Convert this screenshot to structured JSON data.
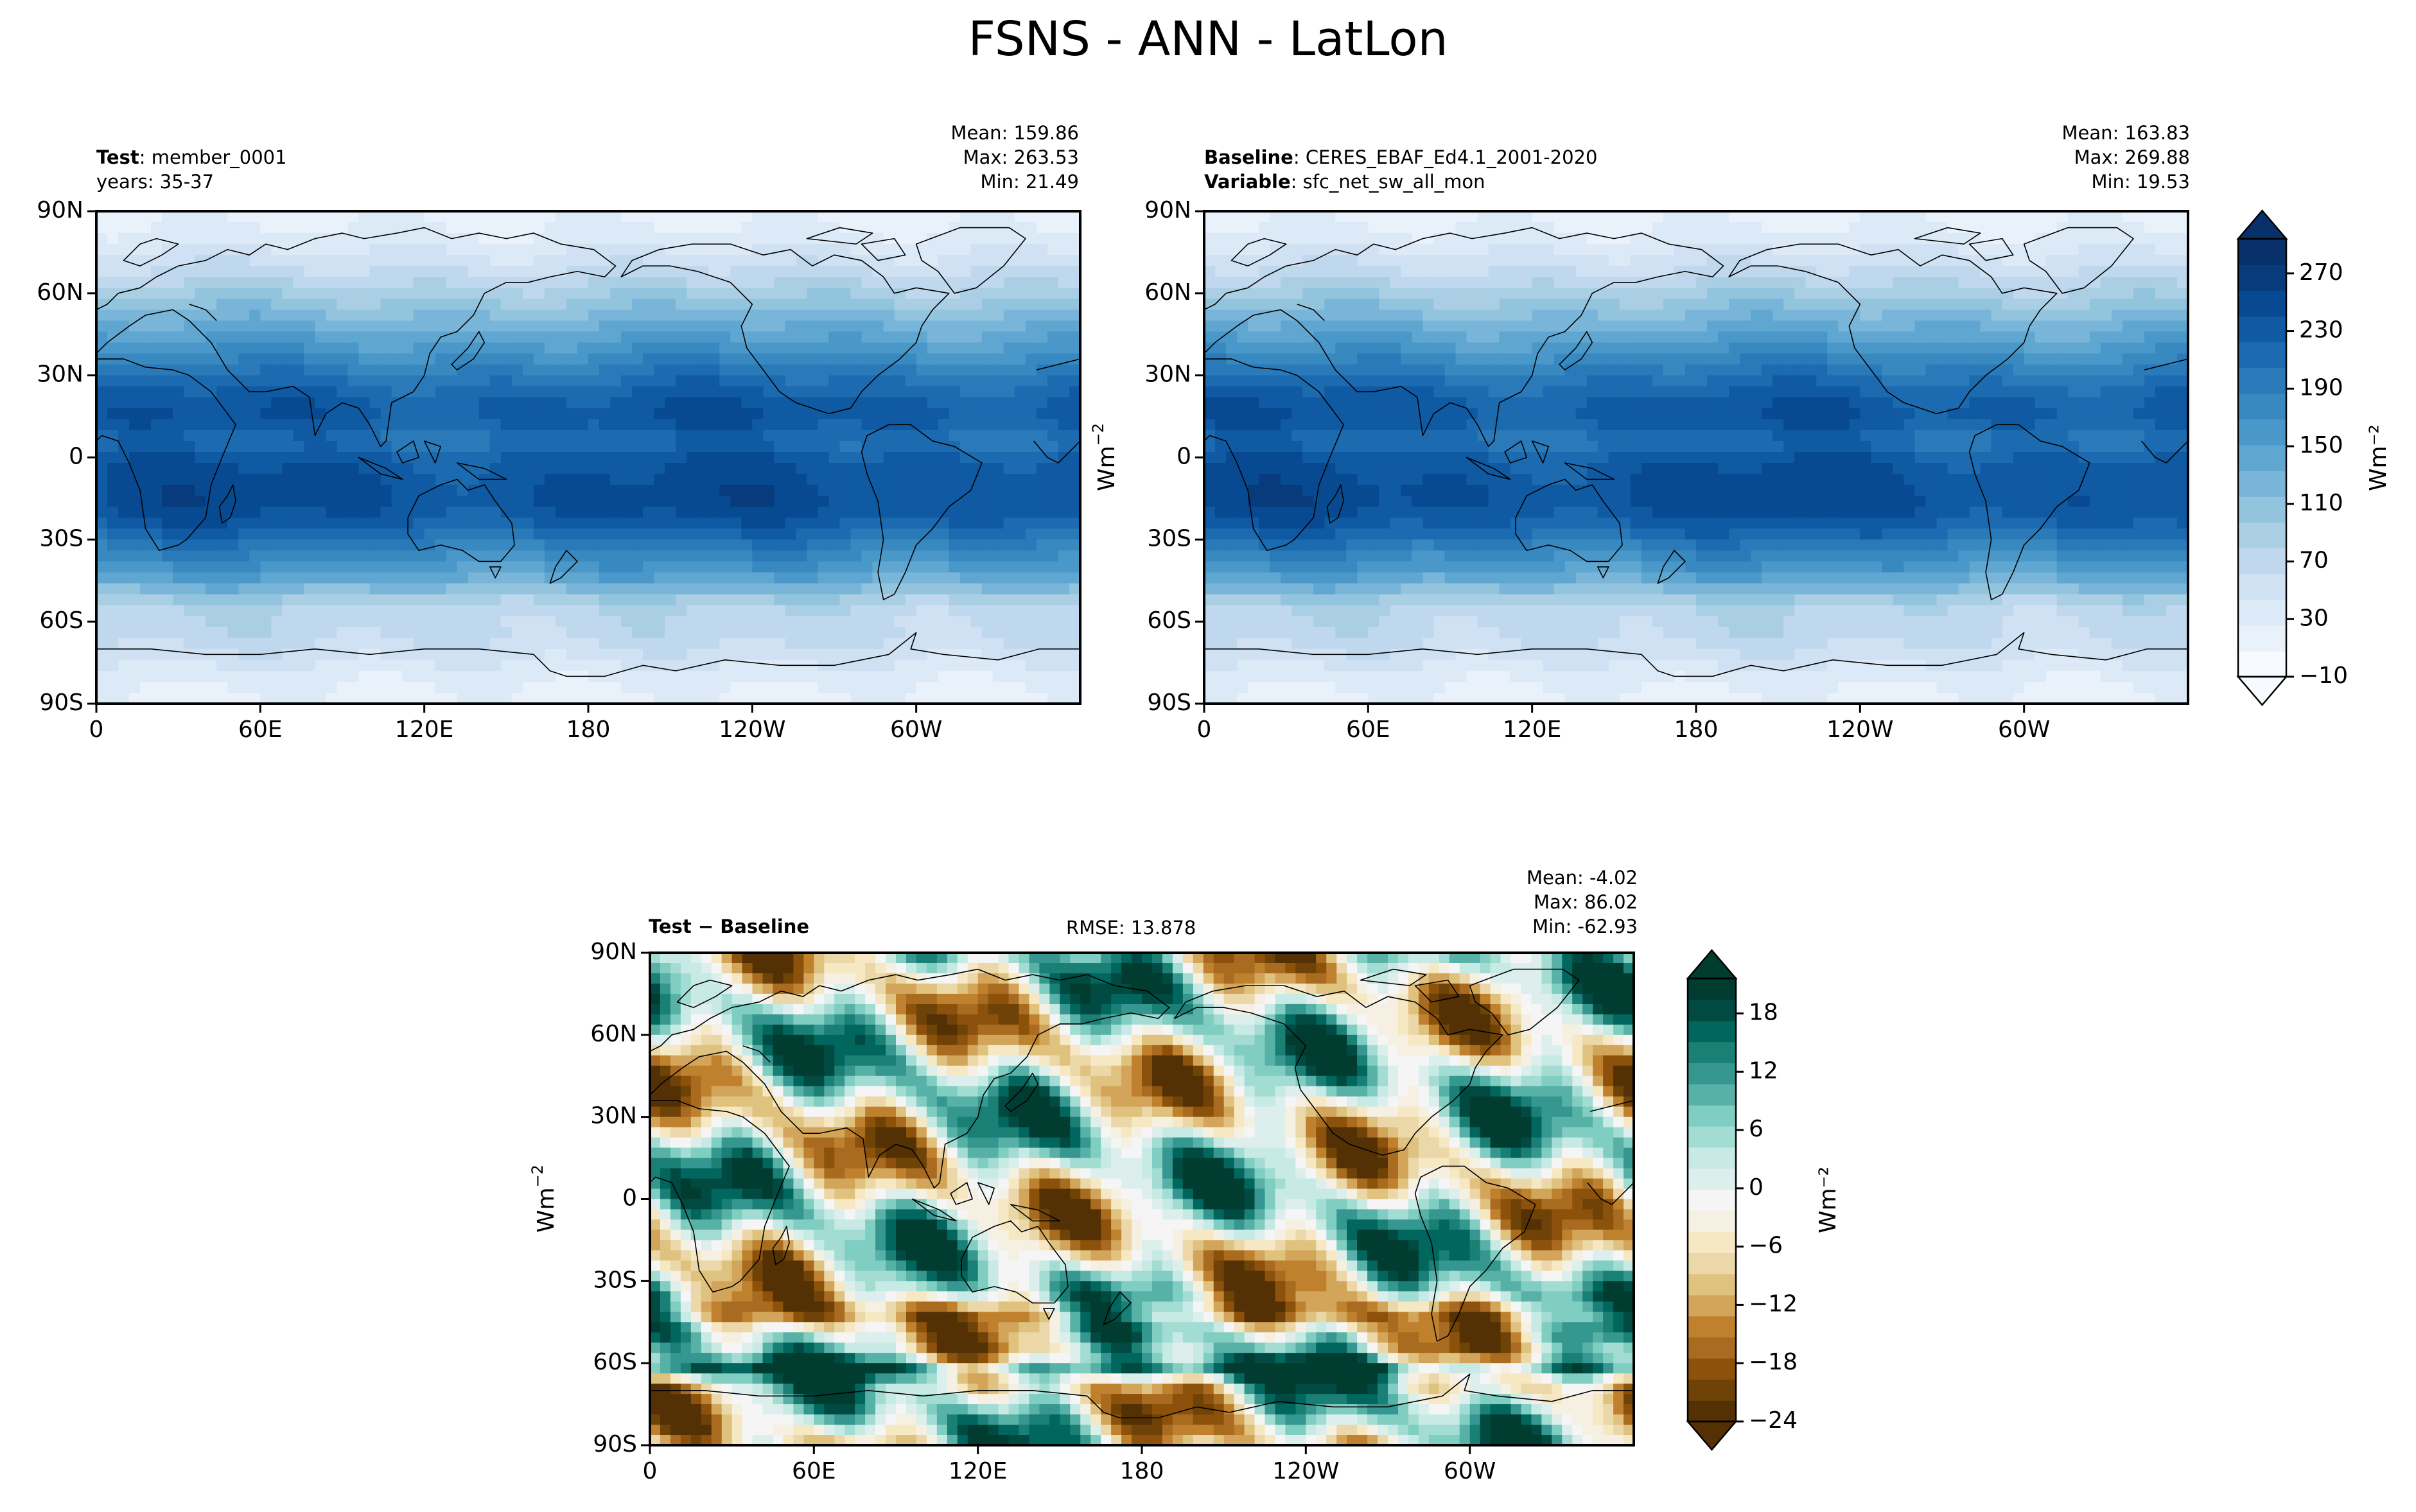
{
  "title": "FSNS - ANN - LatLon",
  "colors": {
    "blues": [
      "#f7fbff",
      "#e9f2fb",
      "#dce9f6",
      "#cfe1f2",
      "#c0d8ed",
      "#aacfe5",
      "#93c4de",
      "#79b5d9",
      "#5fa6d1",
      "#4a98c9",
      "#3989c1",
      "#2a79b8",
      "#1c6aaf",
      "#0f5aa3",
      "#084a91",
      "#083b7c",
      "#08306b"
    ],
    "diverging": [
      "#543005",
      "#6f4307",
      "#8c510a",
      "#a86b20",
      "#bf812d",
      "#d3a55b",
      "#dfc27d",
      "#ebd7a8",
      "#f6e8c3",
      "#f5f0e2",
      "#f5f5f5",
      "#dcefec",
      "#c7eae5",
      "#a3dcd3",
      "#80cdc1",
      "#58b1a7",
      "#35978f",
      "#1a7f75",
      "#01665e",
      "#014a42",
      "#003c30"
    ]
  },
  "panels": [
    {
      "id": "test",
      "label_bold": "Test",
      "label_text": "member_0001",
      "label2_bold": "",
      "label2_text": "years: 35-37",
      "stats": [
        "Mean: 159.86",
        "Max: 263.53",
        "Min: 21.49"
      ]
    },
    {
      "id": "baseline",
      "label_bold": "Baseline",
      "label_text": "CERES_EBAF_Ed4.1_2001-2020",
      "label2_bold": "Variable",
      "label2_text": "sfc_net_sw_all_mon",
      "stats": [
        "Mean: 163.83",
        "Max: 269.88",
        "Min: 19.53"
      ]
    },
    {
      "id": "diff",
      "label_bold": "Test − Baseline",
      "rmse": "RMSE: 13.878",
      "stats": [
        "Mean: -4.02",
        "Max: 86.02",
        "Min: -62.93"
      ]
    }
  ],
  "axes": {
    "lat_ticks": [
      "90N",
      "60N",
      "30N",
      "0",
      "30S",
      "60S",
      "90S"
    ],
    "lon_ticks": [
      "0",
      "60E",
      "120E",
      "180",
      "120W",
      "60W"
    ]
  },
  "colorbars": [
    {
      "ticks": [
        "−10",
        "30",
        "70",
        "110",
        "150",
        "190",
        "230",
        "270"
      ],
      "label": "Wm⁻²",
      "range": [
        -10,
        290
      ]
    },
    {
      "ticks": [
        "−24",
        "−18",
        "−12",
        "−6",
        "0",
        "6",
        "12",
        "18"
      ],
      "label": "Wm⁻²",
      "range": [
        -24,
        22
      ]
    }
  ],
  "chart_data": {
    "type": "heatmap",
    "title": "FSNS - ANN - LatLon",
    "x_axis": {
      "ticks": [
        "0",
        "60E",
        "120E",
        "180",
        "120W",
        "60W"
      ],
      "range_deg_east": [
        0,
        360
      ]
    },
    "y_axis": {
      "ticks": [
        "90N",
        "60N",
        "30N",
        "0",
        "30S",
        "60S",
        "90S"
      ],
      "range_deg": [
        -90,
        90
      ]
    },
    "maps": [
      {
        "name": "Test",
        "case": "member_0001",
        "years": "35-37",
        "mean": 159.86,
        "max": 263.53,
        "min": 21.49,
        "units": "Wm^-2",
        "color_range": [
          -10,
          290
        ],
        "colormap": "Blues"
      },
      {
        "name": "Baseline",
        "case": "CERES_EBAF_Ed4.1_2001-2020",
        "variable": "sfc_net_sw_all_mon",
        "mean": 163.83,
        "max": 269.88,
        "min": 19.53,
        "units": "Wm^-2",
        "color_range": [
          -10,
          290
        ],
        "colormap": "Blues"
      },
      {
        "name": "Test − Baseline",
        "rmse": 13.878,
        "mean": -4.02,
        "max": 86.02,
        "min": -62.93,
        "units": "Wm^-2",
        "color_range": [
          -24,
          22
        ],
        "colormap": "BrBG"
      }
    ]
  }
}
